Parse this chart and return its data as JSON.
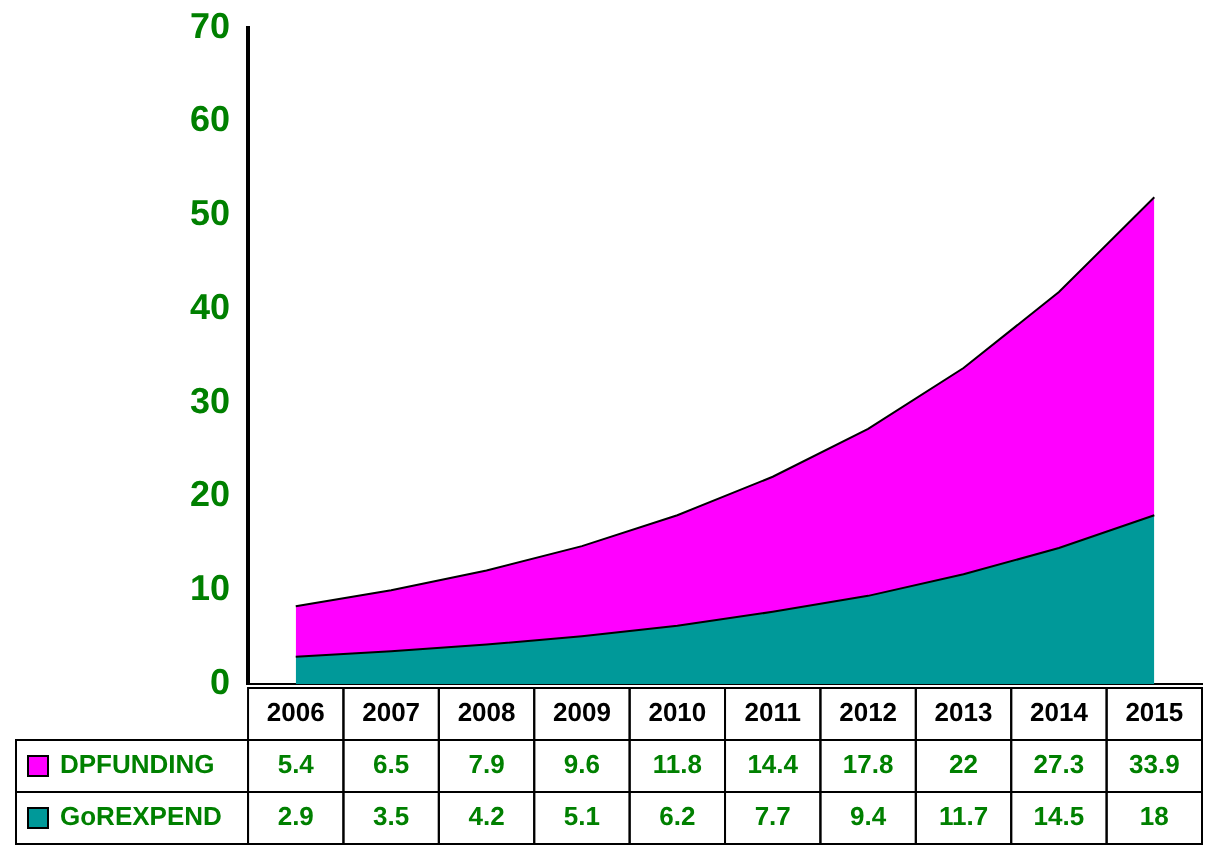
{
  "chart_data": {
    "type": "area",
    "stacked": true,
    "categories": [
      "2006",
      "2007",
      "2008",
      "2009",
      "2010",
      "2011",
      "2012",
      "2013",
      "2014",
      "2015"
    ],
    "series": [
      {
        "name": "GoREXPEND",
        "color": "#009999",
        "values": [
          2.9,
          3.5,
          4.2,
          5.1,
          6.2,
          7.7,
          9.4,
          11.7,
          14.5,
          18
        ]
      },
      {
        "name": "DPFUNDING",
        "color": "#ff00ff",
        "values": [
          5.4,
          6.5,
          7.9,
          9.6,
          11.8,
          14.4,
          17.8,
          22,
          27.3,
          33.9
        ]
      }
    ],
    "ylim": [
      0,
      70
    ],
    "yticks": [
      0,
      10,
      20,
      30,
      40,
      50,
      60,
      70
    ],
    "grid": false,
    "legend": "bottom",
    "data_labels": true
  }
}
